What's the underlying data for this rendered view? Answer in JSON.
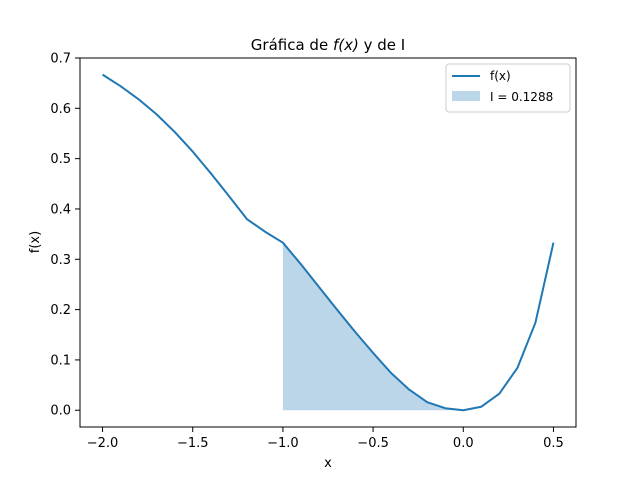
{
  "chart_data": {
    "type": "line",
    "title_prefix": "Gráfica de ",
    "title_func": "f(x)",
    "title_suffix": " y de I",
    "xlabel": "x",
    "ylabel": "f(x)",
    "xlim": [
      -2.125,
      0.625
    ],
    "ylim": [
      -0.0333,
      0.7
    ],
    "xticks": [
      -2.0,
      -1.5,
      -1.0,
      -0.5,
      0.0,
      0.5
    ],
    "xtick_labels": [
      "−2.0",
      "−1.5",
      "−1.0",
      "−0.5",
      "0.0",
      "0.5"
    ],
    "yticks": [
      0.0,
      0.1,
      0.2,
      0.3,
      0.4,
      0.5,
      0.6,
      0.7
    ],
    "ytick_labels": [
      "0.0",
      "0.1",
      "0.2",
      "0.3",
      "0.4",
      "0.5",
      "0.6",
      "0.7"
    ],
    "grid": false,
    "legend_position": "top-right",
    "series": [
      {
        "name": "f(x)",
        "kind": "line",
        "color": "#1f77b4",
        "x": [
          -2.0,
          -1.9,
          -1.8,
          -1.7,
          -1.6,
          -1.5,
          -1.4,
          -1.3,
          -1.2,
          -1.1,
          -1.0,
          -0.9,
          -0.8,
          -0.7,
          -0.6,
          -0.5,
          -0.4,
          -0.3,
          -0.2,
          -0.1,
          0.0,
          0.1,
          0.2,
          0.3,
          0.4,
          0.5
        ],
        "y": [
          0.667,
          0.644,
          0.618,
          0.588,
          0.553,
          0.514,
          0.471,
          0.426,
          0.38,
          0.355,
          0.333,
          0.29,
          0.245,
          0.2,
          0.156,
          0.114,
          0.074,
          0.041,
          0.016,
          0.004,
          0.0,
          0.007,
          0.033,
          0.084,
          0.174,
          0.333
        ]
      },
      {
        "name": "I = 0.1288",
        "kind": "area",
        "color": "#1f77b4",
        "alpha": 0.3,
        "x": [
          -1.0,
          -0.9,
          -0.8,
          -0.7,
          -0.6,
          -0.5,
          -0.4,
          -0.3,
          -0.2,
          -0.1,
          0.0
        ],
        "y": [
          0.333,
          0.29,
          0.245,
          0.2,
          0.156,
          0.114,
          0.074,
          0.041,
          0.016,
          0.004,
          0.0
        ]
      }
    ]
  }
}
